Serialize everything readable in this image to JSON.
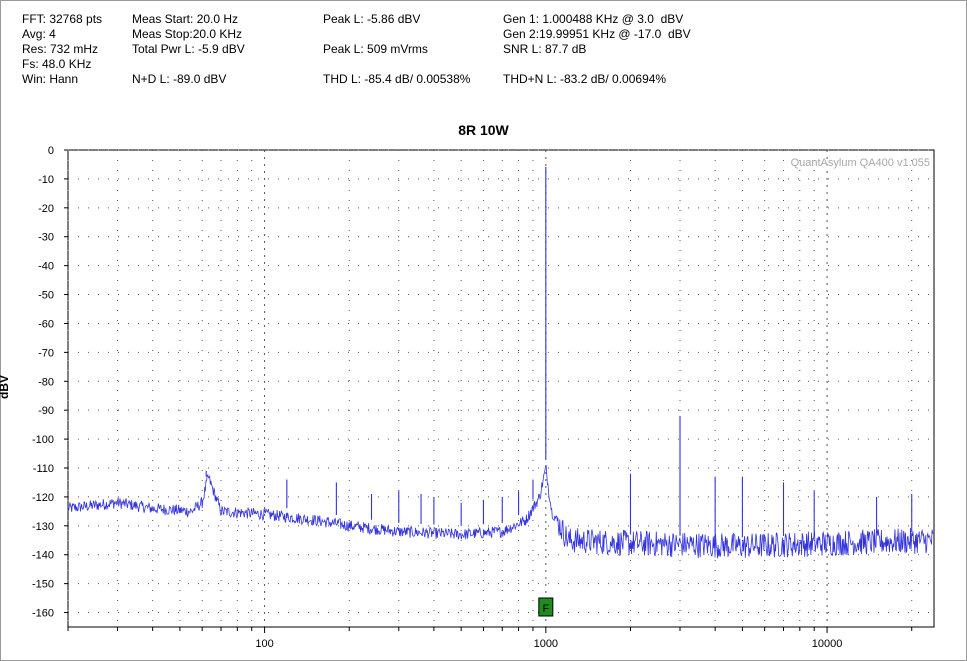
{
  "info": {
    "fft": "FFT: 32768 pts",
    "avg": "Avg: 4",
    "res": "Res: 732 mHz",
    "fs": "Fs: 48.0 KHz",
    "win": "Win: Hann",
    "meas_start": "Meas Start: 20.0 Hz",
    "meas_stop": "Meas Stop:20.0 KHz",
    "total_pwr": "Total Pwr L: -5.9 dBV",
    "nd": "N+D L: -89.0 dBV",
    "peak_dbv": "Peak L: -5.86 dBV",
    "peak_vrms": "Peak L: 509 mVrms",
    "thd": "THD L: -85.4 dB/ 0.00538%",
    "gen1": "Gen 1: 1.000488 KHz @ 3.0  dBV",
    "gen2": "Gen 2:19.99951 KHz @ -17.0  dBV",
    "snr": "SNR L: 87.7 dB",
    "thdn": "THD+N L: -83.2 dB/ 0.00694%"
  },
  "watermark": "QuantAsylum QA400 v1.055",
  "marker_label": "F",
  "colors": {
    "trace": "#3333dd",
    "marker_fill": "#1e8c1e",
    "grid": "#555555"
  },
  "chart_data": {
    "type": "line",
    "title": "8R 10W",
    "ylabel": "dBV",
    "xlabel": "",
    "x_scale": "log",
    "xlim": [
      20,
      24000
    ],
    "ylim": [
      -165,
      0
    ],
    "grid": true,
    "x_tick_labels": [
      {
        "value": 100,
        "label": "100"
      },
      {
        "value": 1000,
        "label": "1000"
      },
      {
        "value": 10000,
        "label": "10000"
      }
    ],
    "y_ticks": [
      0,
      -10,
      -20,
      -30,
      -40,
      -50,
      -60,
      -70,
      -80,
      -90,
      -100,
      -110,
      -120,
      -130,
      -140,
      -150,
      -160
    ],
    "marker": {
      "x": 1000,
      "label": "F"
    },
    "noise_floor": [
      [
        20,
        -124
      ],
      [
        30,
        -122
      ],
      [
        40,
        -124
      ],
      [
        55,
        -125
      ],
      [
        60,
        -122
      ],
      [
        63,
        -113
      ],
      [
        70,
        -125
      ],
      [
        100,
        -126
      ],
      [
        150,
        -128
      ],
      [
        200,
        -130
      ],
      [
        300,
        -132
      ],
      [
        500,
        -133
      ],
      [
        700,
        -132
      ],
      [
        850,
        -128
      ],
      [
        950,
        -120
      ],
      [
        1000,
        -110
      ],
      [
        1050,
        -125
      ],
      [
        1200,
        -135
      ],
      [
        2000,
        -136
      ],
      [
        5000,
        -137
      ],
      [
        10000,
        -136
      ],
      [
        24000,
        -135
      ]
    ],
    "peaks": [
      {
        "x": 62,
        "y": -111
      },
      {
        "x": 120,
        "y": -114
      },
      {
        "x": 180,
        "y": -115
      },
      {
        "x": 240,
        "y": -119
      },
      {
        "x": 300,
        "y": -118
      },
      {
        "x": 360,
        "y": -119
      },
      {
        "x": 400,
        "y": -120
      },
      {
        "x": 500,
        "y": -122
      },
      {
        "x": 600,
        "y": -121
      },
      {
        "x": 700,
        "y": -120
      },
      {
        "x": 800,
        "y": -118
      },
      {
        "x": 900,
        "y": -114
      },
      {
        "x": 1000,
        "y": -5.9
      },
      {
        "x": 2000,
        "y": -112
      },
      {
        "x": 3000,
        "y": -92
      },
      {
        "x": 4000,
        "y": -113
      },
      {
        "x": 5000,
        "y": -113
      },
      {
        "x": 7000,
        "y": -115
      },
      {
        "x": 9000,
        "y": -118
      },
      {
        "x": 15000,
        "y": -120
      },
      {
        "x": 20000,
        "y": -119
      }
    ]
  }
}
